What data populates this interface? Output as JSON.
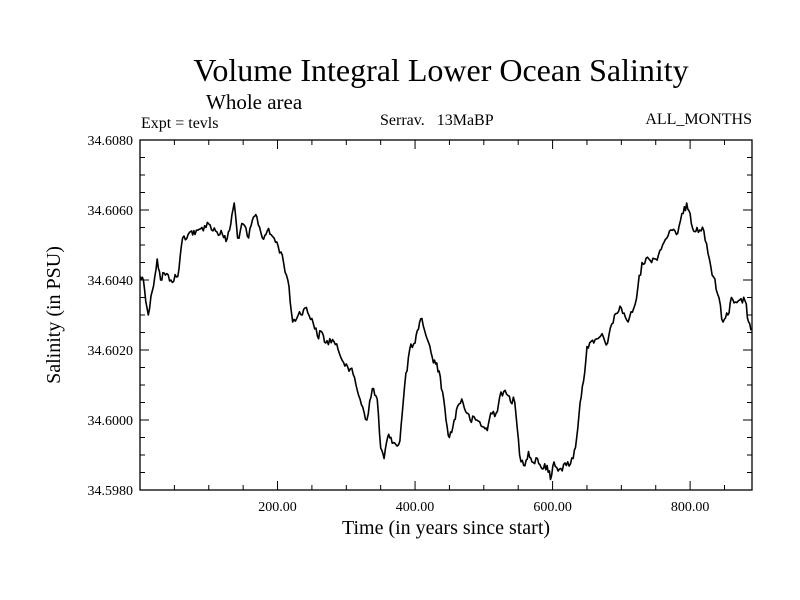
{
  "chart_data": {
    "type": "line",
    "title": "Volume Integral Lower Ocean Salinity",
    "subtitle": "Whole area",
    "expt_label": "Expt = tevls",
    "period_label": "Serrav.   13MaBP",
    "months_label": "ALL_MONTHS",
    "xlabel": "Time (in years since start)",
    "ylabel": "Salinity (in PSU)",
    "xlim": [
      0,
      890
    ],
    "ylim": [
      34.598,
      34.608
    ],
    "x_ticks": [
      {
        "value": 200,
        "label": "200.00"
      },
      {
        "value": 400,
        "label": "400.00"
      },
      {
        "value": 600,
        "label": "600.00"
      },
      {
        "value": 800,
        "label": "800.00"
      }
    ],
    "y_ticks": [
      {
        "value": 34.598,
        "label": "34.5980"
      },
      {
        "value": 34.6,
        "label": "34.6000"
      },
      {
        "value": 34.602,
        "label": "34.6020"
      },
      {
        "value": 34.604,
        "label": "34.6040"
      },
      {
        "value": 34.606,
        "label": "34.6060"
      },
      {
        "value": 34.608,
        "label": "34.6080"
      }
    ],
    "line_color": "#000000",
    "series": [
      {
        "name": "Salinity",
        "x": [
          0,
          5,
          12,
          18,
          25,
          30,
          35,
          45,
          55,
          62,
          70,
          75,
          80,
          90,
          100,
          110,
          120,
          125,
          132,
          137,
          142,
          150,
          158,
          165,
          170,
          178,
          185,
          195,
          205,
          215,
          222,
          230,
          240,
          250,
          258,
          265,
          270,
          280,
          290,
          300,
          310,
          320,
          330,
          338,
          345,
          350,
          355,
          360,
          365,
          372,
          378,
          385,
          392,
          400,
          405,
          410,
          418,
          425,
          430,
          435,
          440,
          445,
          450,
          455,
          462,
          468,
          475,
          480,
          490,
          500,
          505,
          510,
          518,
          525,
          535,
          545,
          552,
          558,
          565,
          570,
          578,
          585,
          592,
          597,
          602,
          610,
          620,
          630,
          635,
          640,
          645,
          650,
          660,
          670,
          680,
          690,
          700,
          710,
          720,
          730,
          740,
          750,
          760,
          770,
          780,
          790,
          795,
          800,
          805,
          810,
          820,
          830,
          840,
          848,
          855,
          860,
          870,
          880,
          885,
          890
        ],
        "values": [
          34.6041,
          34.604,
          34.603,
          34.6037,
          34.6046,
          34.604,
          34.6042,
          34.604,
          34.6041,
          34.6052,
          34.6053,
          34.6054,
          34.6053,
          34.6055,
          34.6056,
          34.6054,
          34.6053,
          34.6051,
          34.6056,
          34.6062,
          34.6052,
          34.6056,
          34.6052,
          34.6058,
          34.6058,
          34.6052,
          34.6054,
          34.6052,
          34.6048,
          34.604,
          34.6028,
          34.603,
          34.6032,
          34.6029,
          34.6024,
          34.6025,
          34.6022,
          34.6023,
          34.6019,
          34.6016,
          34.6013,
          34.6006,
          34.6,
          34.6009,
          34.6006,
          34.5992,
          34.5989,
          34.5995,
          34.5995,
          34.5993,
          34.5994,
          34.601,
          34.602,
          34.6022,
          34.6026,
          34.6029,
          34.6023,
          34.6018,
          34.6016,
          34.6014,
          34.6008,
          34.6,
          34.5995,
          34.5998,
          34.6004,
          34.6006,
          34.6002,
          34.6,
          34.6,
          34.5998,
          34.5997,
          34.6002,
          34.6002,
          34.6008,
          34.6007,
          34.6005,
          34.599,
          34.5987,
          34.5991,
          34.5988,
          34.5989,
          34.5986,
          34.5987,
          34.5983,
          34.5988,
          34.5986,
          34.5987,
          34.5989,
          34.5995,
          34.6005,
          34.6011,
          34.6021,
          34.6022,
          34.6024,
          34.6022,
          34.603,
          34.6032,
          34.6028,
          34.6033,
          34.6045,
          34.6046,
          34.6046,
          34.605,
          34.6054,
          34.6053,
          34.6059,
          34.6062,
          34.6059,
          34.6054,
          34.6055,
          34.6054,
          34.6044,
          34.6036,
          34.6028,
          34.603,
          34.6035,
          34.6034,
          34.6034,
          34.6028,
          34.6026
        ]
      }
    ]
  }
}
